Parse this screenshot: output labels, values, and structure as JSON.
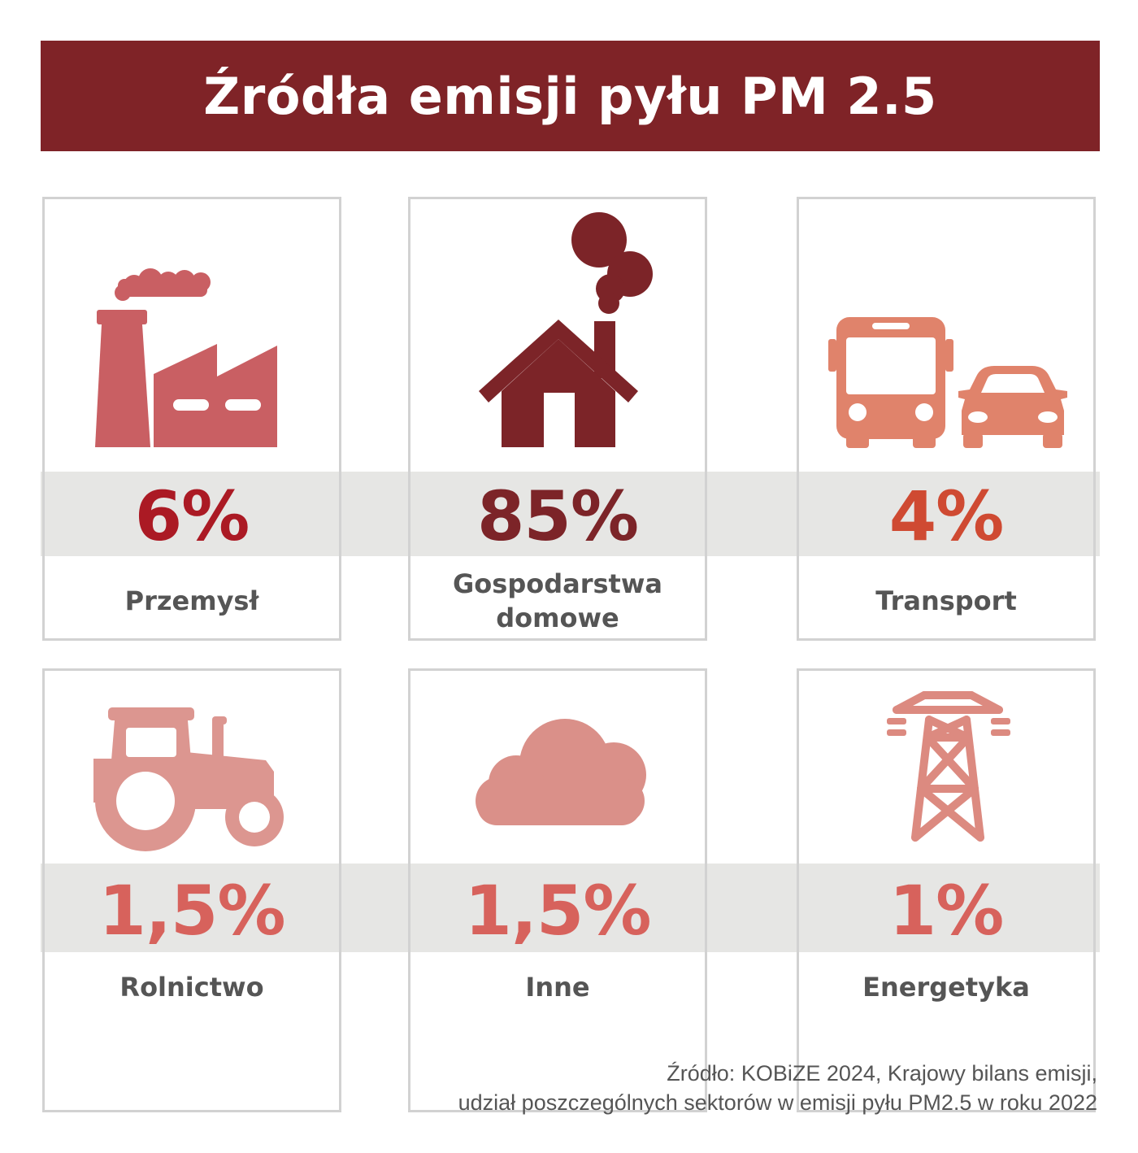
{
  "title": "Źródła emisji pyłu PM 2.5",
  "colors": {
    "title_bg": "#7f2327",
    "band": "#e6e6e4",
    "border": "#d2d2d2",
    "label": "#555555"
  },
  "cards": [
    {
      "icon": "factory-icon",
      "value": "6%",
      "label": "Przemysł",
      "color": "#ab1a24",
      "icon_color": "#c95f63"
    },
    {
      "icon": "house-chimney-smoke-icon",
      "value": "85%",
      "label": "Gospodarstwa domowe",
      "color": "#7c2428",
      "icon_color": "#7c2428"
    },
    {
      "icon": "bus-car-icon",
      "value": "4%",
      "label": "Transport",
      "color": "#cf4a32",
      "icon_color": "#e0836b"
    },
    {
      "icon": "tractor-icon",
      "value": "1,5%",
      "label": "Rolnictwo",
      "color": "#d7625c",
      "icon_color": "#dc9690"
    },
    {
      "icon": "cloud-icon",
      "value": "1,5%",
      "label": "Inne",
      "color": "#d7625c",
      "icon_color": "#da9089"
    },
    {
      "icon": "power-pylon-icon",
      "value": "1%",
      "label": "Energetyka",
      "color": "#d7625c",
      "icon_color": "#dc8a80"
    }
  ],
  "source": {
    "line1": "Źródło: KOBiZE 2024, Krajowy bilans emisji,",
    "line2": "udział poszczególnych sektorów w emisji pyłu PM2.5 w roku 2022"
  }
}
